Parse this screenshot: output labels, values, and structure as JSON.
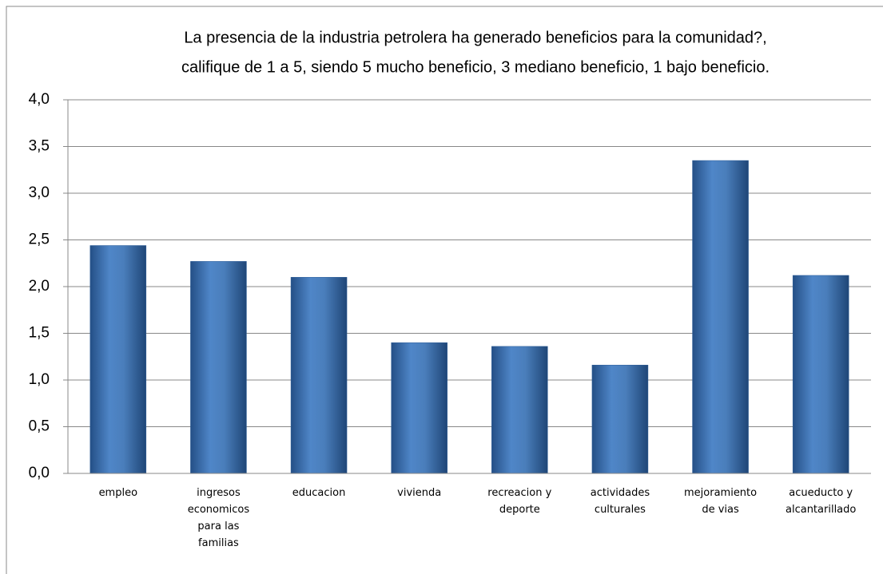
{
  "chart_data": {
    "type": "bar",
    "title": [
      "La presencia de la industria petrolera ha generado beneficios para la comunidad?,",
      "califique de 1 a 5, siendo 5 mucho beneficio, 3 mediano beneficio, 1 bajo beneficio."
    ],
    "categories": [
      "empleo",
      "ingresos economicos para las familias",
      "educacion",
      "vivienda",
      "recreacion y deporte",
      "actividades culturales",
      "mejoramiento de vias",
      "acueducto y alcantarillado"
    ],
    "values": [
      2.44,
      2.27,
      2.1,
      1.4,
      1.36,
      1.16,
      3.35,
      2.12
    ],
    "color": "#4a7ebb",
    "ylim": [
      0,
      4
    ],
    "yticks": [
      {
        "value": 0,
        "label": "0,0"
      },
      {
        "value": 0.5,
        "label": "0,5"
      },
      {
        "value": 1,
        "label": "1,0"
      },
      {
        "value": 1.5,
        "label": "1,5"
      },
      {
        "value": 2,
        "label": "2,0"
      },
      {
        "value": 2.5,
        "label": "2,5"
      },
      {
        "value": 3,
        "label": "3,0"
      },
      {
        "value": 3.5,
        "label": "3,5"
      },
      {
        "value": 4,
        "label": "4,0"
      }
    ],
    "grid": true
  }
}
